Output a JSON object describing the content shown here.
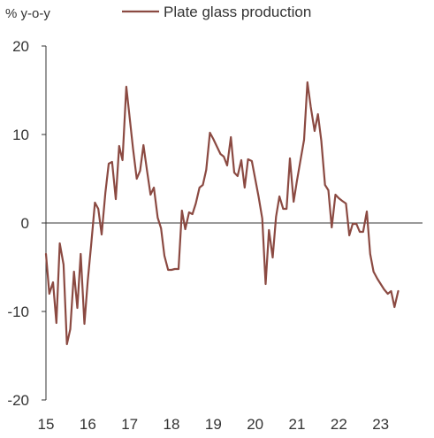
{
  "chart_data": {
    "type": "line",
    "unit_label": "% y-o-y",
    "ylim": [
      -20,
      20
    ],
    "y_ticks": [
      20,
      10,
      0,
      -10,
      -20
    ],
    "xlim": [
      15,
      24
    ],
    "x_ticks": [
      15,
      16,
      17,
      18,
      19,
      20,
      21,
      22,
      23
    ],
    "zero_line": true,
    "grid": false,
    "legend_position": "top",
    "series": [
      {
        "name": "Plate glass production",
        "color": "#8b4a42",
        "x": [
          15.0,
          15.08,
          15.17,
          15.25,
          15.33,
          15.42,
          15.5,
          15.58,
          15.67,
          15.75,
          15.83,
          15.92,
          16.0,
          16.08,
          16.17,
          16.25,
          16.33,
          16.42,
          16.5,
          16.58,
          16.67,
          16.75,
          16.83,
          16.92,
          17.0,
          17.08,
          17.17,
          17.25,
          17.33,
          17.42,
          17.5,
          17.58,
          17.67,
          17.75,
          17.83,
          17.92,
          18.0,
          18.08,
          18.17,
          18.25,
          18.33,
          18.42,
          18.5,
          18.58,
          18.67,
          18.75,
          18.83,
          18.92,
          19.0,
          19.08,
          19.17,
          19.25,
          19.33,
          19.42,
          19.5,
          19.58,
          19.67,
          19.75,
          19.83,
          19.92,
          20.0,
          20.08,
          20.17,
          20.25,
          20.33,
          20.42,
          20.5,
          20.58,
          20.67,
          20.75,
          20.83,
          20.92,
          21.0,
          21.08,
          21.17,
          21.25,
          21.33,
          21.42,
          21.5,
          21.58,
          21.67,
          21.75,
          21.83,
          21.92,
          22.0,
          22.08,
          22.17,
          22.25,
          22.33,
          22.42,
          22.5,
          22.58,
          22.67,
          22.75,
          22.83,
          22.92,
          23.0,
          23.08,
          23.17,
          23.25,
          23.33,
          23.42
        ],
        "values": [
          -3.5,
          -8.0,
          -6.7,
          -11.3,
          -2.3,
          -4.7,
          -13.7,
          -12.0,
          -5.5,
          -9.6,
          -3.5,
          -11.4,
          -6.5,
          -2.5,
          2.3,
          1.6,
          -1.3,
          3.4,
          6.7,
          6.9,
          2.7,
          8.7,
          7.1,
          15.4,
          11.9,
          8.4,
          5.0,
          5.9,
          8.8,
          5.8,
          3.2,
          4.0,
          0.6,
          -0.6,
          -3.7,
          -5.3,
          -5.3,
          -5.2,
          -5.2,
          1.4,
          -0.7,
          1.2,
          1.0,
          2.2,
          4.0,
          4.3,
          6.0,
          10.2,
          9.5,
          8.7,
          7.8,
          7.5,
          6.5,
          9.7,
          5.7,
          5.3,
          7.1,
          4.0,
          7.2,
          7.0,
          5.0,
          3.0,
          0.5,
          -6.9,
          -0.8,
          -3.9,
          0.7,
          3.0,
          1.6,
          1.6,
          7.3,
          2.4,
          4.8,
          7.0,
          9.4,
          15.9,
          13.1,
          10.4,
          12.3,
          9.3,
          4.3,
          3.7,
          -0.5,
          3.2,
          2.8,
          2.5,
          2.2,
          -1.4,
          -0.1,
          -0.1,
          -1.0,
          -1.0,
          1.3,
          -3.5,
          -5.5,
          -6.3,
          -6.9,
          -7.5,
          -8.0,
          -7.7,
          -9.5,
          -7.7
        ]
      }
    ]
  }
}
